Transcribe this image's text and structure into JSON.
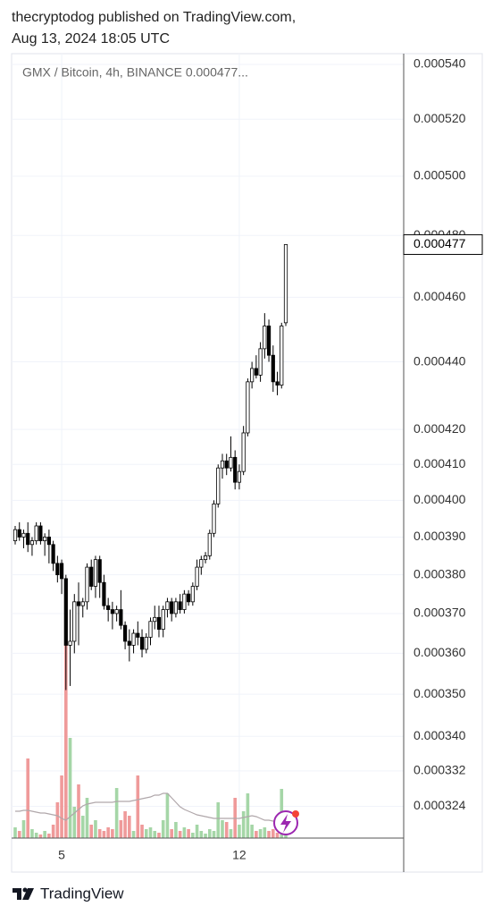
{
  "header": {
    "line1": "thecryptodog published on TradingView.com,",
    "line2": "Aug 13, 2024 18:05 UTC"
  },
  "footer": {
    "brand": "TradingView"
  },
  "chart_data": {
    "type": "candlestick",
    "title": "GMX / Bitcoin, 4h, BINANCE  0.000477...",
    "log": true,
    "grid": true,
    "up_color": "#ffffff",
    "down_color": "#000000",
    "volume_up_color": "#a5d6a7",
    "volume_down_color": "#ef9a9a",
    "volume_ma_color": "#b0a7aa",
    "x": [
      null,
      null,
      null,
      null,
      null,
      null,
      null,
      null,
      null,
      null,
      null,
      "5",
      null,
      null,
      null,
      null,
      null,
      null,
      null,
      null,
      null,
      null,
      null,
      null,
      null,
      null,
      null,
      null,
      null,
      null,
      null,
      null,
      null,
      null,
      null,
      null,
      null,
      null,
      null,
      null,
      null,
      null,
      null,
      null,
      null,
      null,
      null,
      null,
      null,
      null,
      null,
      null,
      null,
      "12",
      null,
      null,
      null,
      null,
      null,
      null,
      null,
      null,
      null,
      null,
      null
    ],
    "open": [
      0.000389,
      0.000392,
      0.00039,
      0.000391,
      0.000388,
      0.000389,
      0.000393,
      0.000389,
      0.00039,
      0.000388,
      0.000383,
      0.000383,
      0.000379,
      0.000362,
      0.000363,
      0.000373,
      0.000372,
      0.000373,
      0.000382,
      0.000377,
      0.000384,
      0.000378,
      0.000372,
      0.000371,
      0.00037,
      0.000371,
      0.000367,
      0.000363,
      0.000362,
      0.000365,
      0.000364,
      0.000361,
      0.000364,
      0.000368,
      0.000369,
      0.000366,
      0.000371,
      0.000373,
      0.00037,
      0.000373,
      0.000371,
      0.000375,
      0.000373,
      0.000377,
      0.000382,
      0.000384,
      0.000385,
      0.000391,
      0.000399,
      0.000409,
      0.000411,
      0.000409,
      0.000412,
      0.000405,
      0.000408,
      0.000419,
      0.000434,
      0.000438,
      0.000436,
      0.000444,
      0.000451,
      0.000442,
      0.000434,
      0.000433,
      0.000452
    ],
    "high": [
      0.000393,
      0.000394,
      0.000392,
      0.000394,
      0.00039,
      0.000394,
      0.000394,
      0.000391,
      0.000392,
      0.000389,
      0.000385,
      0.000384,
      0.00038,
      0.000371,
      0.000375,
      0.000378,
      0.000374,
      0.000383,
      0.000384,
      0.000385,
      0.000385,
      0.00038,
      0.000374,
      0.000373,
      0.000372,
      0.000376,
      0.000368,
      0.000366,
      0.000366,
      0.000368,
      0.000366,
      0.000365,
      0.000369,
      0.000372,
      0.000372,
      0.000372,
      0.000374,
      0.000374,
      0.000374,
      0.000375,
      0.000376,
      0.000376,
      0.000378,
      0.000384,
      0.000385,
      0.000386,
      0.000392,
      0.0004,
      0.00041,
      0.000413,
      0.000413,
      0.000418,
      0.000414,
      0.00041,
      0.000421,
      0.000435,
      0.00044,
      0.000442,
      0.000446,
      0.000455,
      0.000453,
      0.000445,
      0.000437,
      0.000452,
      0.000477
    ],
    "low": [
      0.000388,
      0.000389,
      0.000387,
      0.000386,
      0.000385,
      0.000388,
      0.000388,
      0.000385,
      0.000383,
      0.000381,
      0.000378,
      0.000375,
      0.000351,
      0.000352,
      0.00036,
      0.000362,
      0.000369,
      0.000371,
      0.000376,
      0.000374,
      0.000374,
      0.000371,
      0.000368,
      0.000366,
      0.000368,
      0.000366,
      0.000361,
      0.000358,
      0.00036,
      0.000362,
      0.000359,
      0.00036,
      0.000362,
      0.000366,
      0.000364,
      0.000364,
      0.000369,
      0.000368,
      0.000369,
      0.00037,
      0.00037,
      0.000372,
      0.000372,
      0.000376,
      0.00038,
      0.000383,
      0.000384,
      0.00039,
      0.000398,
      0.000406,
      0.000407,
      0.000408,
      0.000403,
      0.000403,
      0.000407,
      0.000418,
      0.000432,
      0.000435,
      0.000434,
      0.000441,
      0.00044,
      0.000431,
      0.00043,
      0.000432,
      0.000451
    ],
    "close": [
      0.000392,
      0.00039,
      0.000391,
      0.000388,
      0.000389,
      0.000393,
      0.000389,
      0.00039,
      0.000388,
      0.000383,
      0.00038,
      0.000379,
      0.000362,
      0.000363,
      0.000373,
      0.000372,
      0.000373,
      0.000382,
      0.000377,
      0.000384,
      0.000378,
      0.000372,
      0.000371,
      0.00037,
      0.000371,
      0.000367,
      0.000363,
      0.000362,
      0.000365,
      0.000364,
      0.000361,
      0.000364,
      0.000368,
      0.000369,
      0.000366,
      0.000371,
      0.000373,
      0.00037,
      0.000373,
      0.000371,
      0.000375,
      0.000373,
      0.000377,
      0.000382,
      0.000384,
      0.000385,
      0.000391,
      0.000399,
      0.000409,
      0.000411,
      0.000409,
      0.000412,
      0.000405,
      0.000408,
      0.000419,
      0.000434,
      0.000438,
      0.000436,
      0.000444,
      0.000451,
      0.000442,
      0.000434,
      0.000433,
      0.000451,
      0.000477
    ],
    "volume": [
      12,
      8,
      20,
      89,
      10,
      6,
      4,
      8,
      5,
      15,
      40,
      70,
      222,
      112,
      35,
      60,
      25,
      45,
      15,
      20,
      10,
      8,
      12,
      10,
      56,
      20,
      30,
      25,
      8,
      70,
      15,
      10,
      12,
      8,
      6,
      20,
      50,
      10,
      18,
      8,
      12,
      10,
      6,
      15,
      8,
      5,
      10,
      8,
      40,
      20,
      18,
      10,
      45,
      15,
      30,
      50,
      15,
      8,
      10,
      12,
      8,
      10,
      6,
      55,
      12
    ],
    "volume_ma": [
      30,
      30,
      31,
      31,
      30,
      29,
      28,
      28,
      27,
      26,
      25,
      22,
      20,
      24,
      28,
      32,
      36,
      38,
      39,
      40,
      40,
      40,
      40,
      40,
      41,
      41,
      41,
      41,
      42,
      43,
      44,
      45,
      46,
      48,
      48,
      50,
      50,
      45,
      40,
      35,
      32,
      30,
      28,
      26,
      25,
      24,
      23,
      22,
      22,
      22,
      22,
      22,
      22,
      22,
      23,
      24,
      25,
      24,
      22,
      20,
      20,
      19,
      18,
      18,
      18
    ],
    "vlim": [
      0,
      100
    ],
    "ylim": [
      0.000317,
      0.000544
    ],
    "yticks": [
      {
        "value": 0.00054,
        "label": "0.000540"
      },
      {
        "value": 0.00052,
        "label": "0.000520"
      },
      {
        "value": 0.0005,
        "label": "0.000500"
      },
      {
        "value": 0.00048,
        "label": "0.000480"
      },
      {
        "value": 0.00046,
        "label": "0.000460"
      },
      {
        "value": 0.00044,
        "label": "0.000440"
      },
      {
        "value": 0.00042,
        "label": "0.000420"
      },
      {
        "value": 0.00041,
        "label": "0.000410"
      },
      {
        "value": 0.0004,
        "label": "0.000400"
      },
      {
        "value": 0.00039,
        "label": "0.000390"
      },
      {
        "value": 0.00038,
        "label": "0.000380"
      },
      {
        "value": 0.00037,
        "label": "0.000370"
      },
      {
        "value": 0.00036,
        "label": "0.000360"
      },
      {
        "value": 0.00035,
        "label": "0.000350"
      },
      {
        "value": 0.00034,
        "label": "0.000340"
      },
      {
        "value": 0.000332,
        "label": "0.000332"
      },
      {
        "value": 0.000324,
        "label": "0.000324"
      }
    ],
    "last_price": {
      "value": 0.000477,
      "label": "0.000477"
    }
  }
}
